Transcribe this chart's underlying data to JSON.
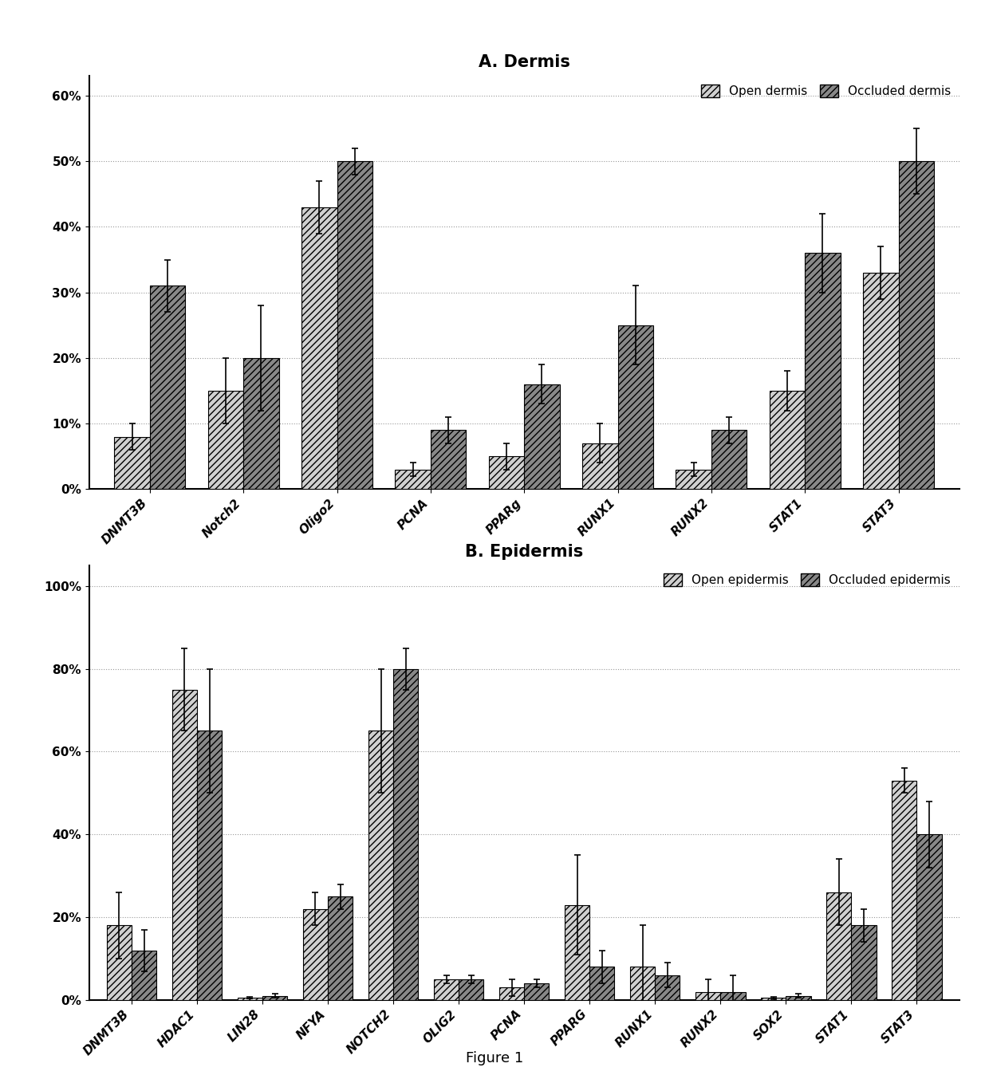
{
  "panel_a": {
    "title": "A. Dermis",
    "categories": [
      "DNMT3B",
      "Notch2",
      "Oligo2",
      "PCNA",
      "PPARg",
      "RUNX1",
      "RUNX2",
      "STAT1",
      "STAT3"
    ],
    "open_values": [
      0.08,
      0.15,
      0.43,
      0.03,
      0.05,
      0.07,
      0.03,
      0.15,
      0.33
    ],
    "occluded_values": [
      0.31,
      0.2,
      0.5,
      0.09,
      0.16,
      0.25,
      0.09,
      0.36,
      0.5
    ],
    "open_errors": [
      0.02,
      0.05,
      0.04,
      0.01,
      0.02,
      0.03,
      0.01,
      0.03,
      0.04
    ],
    "occluded_errors": [
      0.04,
      0.08,
      0.02,
      0.02,
      0.03,
      0.06,
      0.02,
      0.06,
      0.05
    ],
    "legend_labels": [
      "Open dermis",
      "Occluded dermis"
    ],
    "ylim": [
      0,
      0.63
    ],
    "yticks": [
      0.0,
      0.1,
      0.2,
      0.3,
      0.4,
      0.5,
      0.6
    ],
    "ytick_labels": [
      "0%",
      "10%",
      "20%",
      "30%",
      "40%",
      "50%",
      "60%"
    ]
  },
  "panel_b": {
    "title": "B. Epidermis",
    "categories": [
      "DNMT3B",
      "HDAC1",
      "LIN28",
      "NFYA",
      "NOTCH2",
      "OLIG2",
      "PCNA",
      "PPARG",
      "RUNX1",
      "RUNX2",
      "SOX2",
      "STAT1",
      "STAT3"
    ],
    "open_values": [
      0.18,
      0.75,
      0.005,
      0.22,
      0.65,
      0.05,
      0.03,
      0.23,
      0.08,
      0.02,
      0.005,
      0.26,
      0.53
    ],
    "occluded_values": [
      0.12,
      0.65,
      0.01,
      0.25,
      0.8,
      0.05,
      0.04,
      0.08,
      0.06,
      0.02,
      0.01,
      0.18,
      0.4
    ],
    "open_errors": [
      0.08,
      0.1,
      0.002,
      0.04,
      0.15,
      0.01,
      0.02,
      0.12,
      0.1,
      0.03,
      0.003,
      0.08,
      0.03
    ],
    "occluded_errors": [
      0.05,
      0.15,
      0.005,
      0.03,
      0.05,
      0.01,
      0.01,
      0.04,
      0.03,
      0.04,
      0.005,
      0.04,
      0.08
    ],
    "legend_labels": [
      "Open epidermis",
      "Occluded epidermis"
    ],
    "ylim": [
      0,
      1.05
    ],
    "yticks": [
      0.0,
      0.2,
      0.4,
      0.6,
      0.8,
      1.0
    ],
    "ytick_labels": [
      "0%",
      "20%",
      "40%",
      "60%",
      "80%",
      "100%"
    ]
  },
  "figure_label": "Figure 1",
  "bar_width": 0.38,
  "open_color": "#d0d0d0",
  "occluded_color": "#888888",
  "hatch": "////",
  "background_color": "#ffffff",
  "grid_color": "#999999",
  "grid_style": ":",
  "title_fontsize": 15,
  "tick_fontsize": 11,
  "legend_fontsize": 11
}
